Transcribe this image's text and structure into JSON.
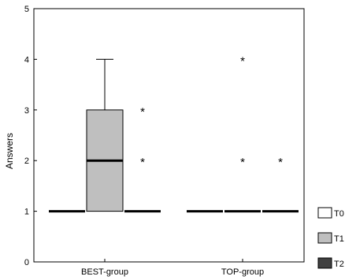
{
  "chart_data": {
    "type": "boxplot",
    "title": "",
    "xlabel": "",
    "ylabel": "Answers",
    "ylim": [
      0,
      5
    ],
    "yticks": [
      0,
      1,
      2,
      3,
      4,
      5
    ],
    "categories": [
      "BEST-group",
      "TOP-group"
    ],
    "legend_position": "right",
    "series": [
      {
        "name": "T0",
        "color": "#ffffff",
        "boxes": [
          {
            "category": "BEST-group",
            "min": 1,
            "q1": 1,
            "median": 1,
            "q3": 1,
            "max": 1,
            "outliers": []
          },
          {
            "category": "TOP-group",
            "min": 1,
            "q1": 1,
            "median": 1,
            "q3": 1,
            "max": 1,
            "outliers": []
          }
        ]
      },
      {
        "name": "T1",
        "color": "#bfbfbf",
        "boxes": [
          {
            "category": "BEST-group",
            "min": 1,
            "q1": 1,
            "median": 2,
            "q3": 3,
            "max": 4,
            "outliers": []
          },
          {
            "category": "TOP-group",
            "min": 1,
            "q1": 1,
            "median": 1,
            "q3": 1,
            "max": 1,
            "outliers": [
              2,
              4
            ]
          }
        ]
      },
      {
        "name": "T2",
        "color": "#404040",
        "boxes": [
          {
            "category": "BEST-group",
            "min": 1,
            "q1": 1,
            "median": 1,
            "q3": 1,
            "max": 1,
            "outliers": [
              2,
              3
            ]
          },
          {
            "category": "TOP-group",
            "min": 1,
            "q1": 1,
            "median": 1,
            "q3": 1,
            "max": 1,
            "outliers": [
              2
            ]
          }
        ]
      }
    ],
    "outlier_symbol": "*"
  }
}
